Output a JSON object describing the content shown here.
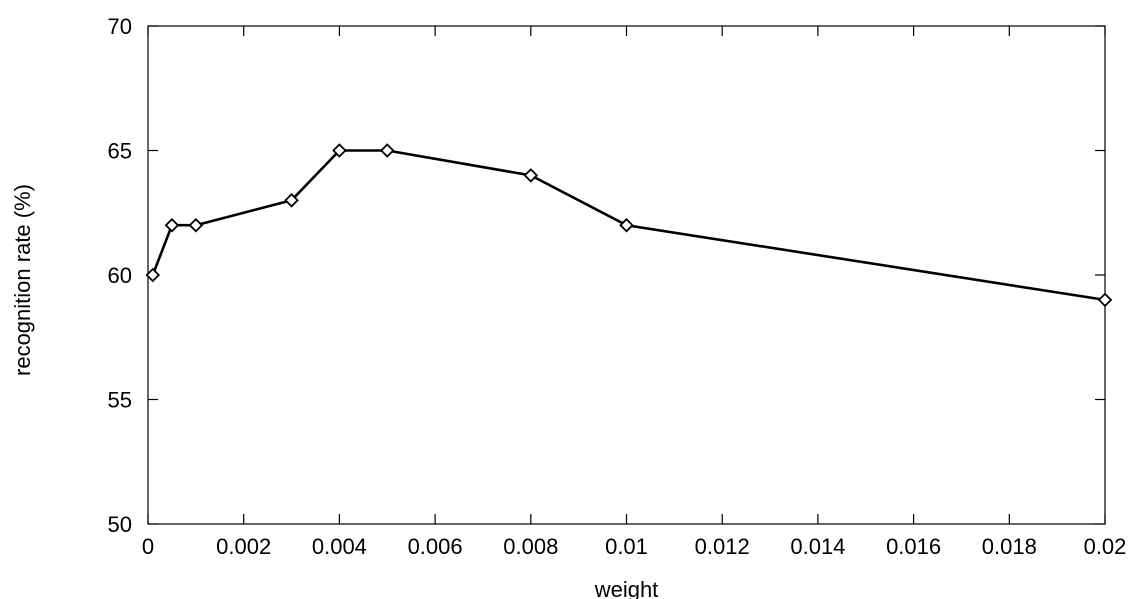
{
  "chart_data": {
    "type": "line",
    "title": "",
    "xlabel": "weight",
    "ylabel": "recognition rate (%)",
    "xlim": [
      0,
      0.02
    ],
    "ylim": [
      50,
      70
    ],
    "xticks": [
      0,
      0.002,
      0.004,
      0.006,
      0.008,
      0.01,
      0.012,
      0.014,
      0.016,
      0.018,
      0.02
    ],
    "xtick_labels": [
      "0",
      "0.002",
      "0.004",
      "0.006",
      "0.008",
      "0.01",
      "0.012",
      "0.014",
      "0.016",
      "0.018",
      "0.02"
    ],
    "yticks": [
      50,
      55,
      60,
      65,
      70
    ],
    "ytick_labels": [
      "50",
      "55",
      "60",
      "65",
      "70"
    ],
    "grid": false,
    "legend": "none",
    "marker": "diamond",
    "line_color": "#000000",
    "series": [
      {
        "x": [
          0.0001,
          0.0005,
          0.001,
          0.003,
          0.004,
          0.005,
          0.008,
          0.01,
          0.02
        ],
        "y": [
          60,
          62,
          62,
          63,
          65,
          65,
          64,
          62,
          59
        ]
      }
    ]
  }
}
